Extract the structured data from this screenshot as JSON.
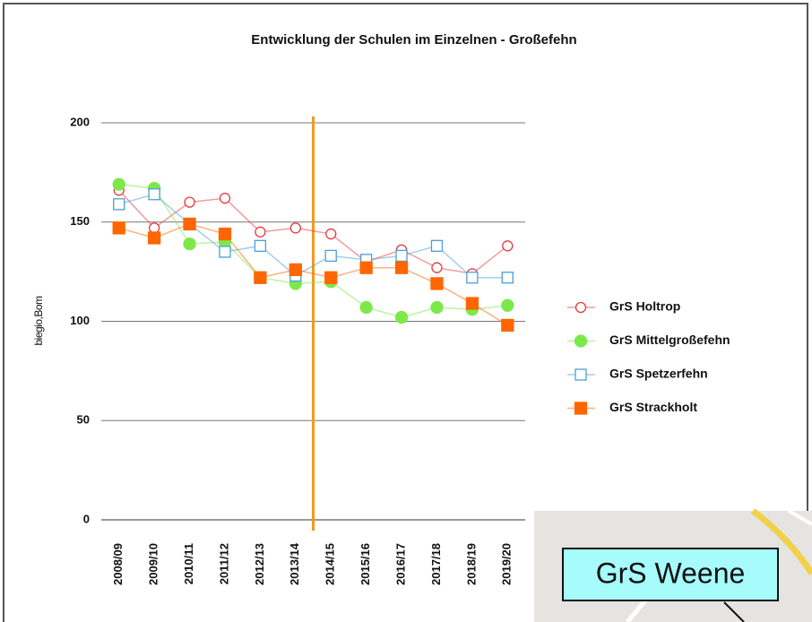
{
  "chart_data": {
    "type": "line",
    "title": "Entwicklung der Schulen im Einzelnen - Großefehn",
    "y_label": "biegio,Bom",
    "categories": [
      "2008/09",
      "2009/10",
      "2010/11",
      "2011/12",
      "2012/13",
      "2013/14",
      "2014/15",
      "2015/16",
      "2016/17",
      "2017/18",
      "2018/19",
      "2019/20"
    ],
    "series": [
      {
        "name": "GrS Holtrop",
        "color": "#e8383a",
        "marker": "circle",
        "filled": false,
        "values": [
          166,
          147,
          160,
          162,
          145,
          147,
          144,
          130,
          136,
          127,
          124,
          138
        ]
      },
      {
        "name": "GrS Mittelgroßefehn",
        "color": "#7de84a",
        "marker": "circle",
        "filled": true,
        "values": [
          169,
          167,
          139,
          140,
          122,
          119,
          120,
          107,
          102,
          107,
          106,
          108
        ]
      },
      {
        "name": "GrS Spetzerfehn",
        "color": "#4a9fd6",
        "marker": "square",
        "filled": false,
        "values": [
          159,
          164,
          149,
          135,
          138,
          123,
          133,
          131,
          133,
          138,
          122,
          122
        ]
      },
      {
        "name": "GrS Strackholt",
        "color": "#ff6600",
        "marker": "square",
        "filled": true,
        "values": [
          147,
          142,
          149,
          144,
          122,
          126,
          122,
          127,
          127,
          119,
          109,
          98
        ]
      }
    ],
    "ylim": [
      0,
      200
    ],
    "yticks": [
      0,
      50,
      100,
      150,
      200
    ],
    "grid": true
  },
  "inset": {
    "label": "GrS Weene"
  }
}
